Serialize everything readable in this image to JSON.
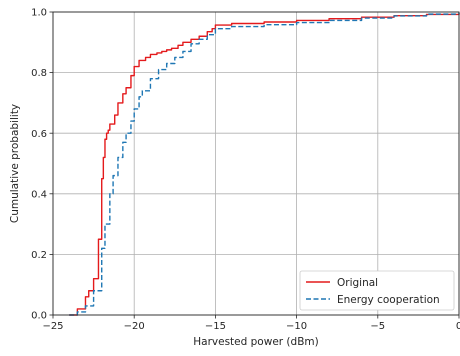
{
  "chart_data": {
    "type": "line",
    "title": "",
    "xlabel": "Harvested power (dBm)",
    "ylabel": "Cumulative probability",
    "xlim": [
      -25,
      0
    ],
    "ylim": [
      0.0,
      1.0
    ],
    "xticks": [
      -25,
      -20,
      -15,
      -10,
      -5,
      0
    ],
    "xtick_labels": [
      "−25",
      "−20",
      "−15",
      "−10",
      "−5",
      "0"
    ],
    "yticks": [
      0.0,
      0.2,
      0.4,
      0.6,
      0.8,
      1.0
    ],
    "ytick_labels": [
      "0.0",
      "0.2",
      "0.4",
      "0.6",
      "0.8",
      "1.0"
    ],
    "grid": true,
    "legend_position": "bottom-right",
    "series": [
      {
        "name": "Original",
        "color": "#e41a1c",
        "style": "solid",
        "x": [
          -24.0,
          -23.5,
          -23.0,
          -22.8,
          -22.5,
          -22.2,
          -22.0,
          -21.9,
          -21.8,
          -21.7,
          -21.6,
          -21.5,
          -21.2,
          -21.0,
          -20.7,
          -20.5,
          -20.2,
          -20.0,
          -19.7,
          -19.3,
          -19.0,
          -18.6,
          -18.3,
          -18.0,
          -17.7,
          -17.3,
          -17.0,
          -16.5,
          -16.0,
          -15.5,
          -15.2,
          -15.0,
          -14.0,
          -12.0,
          -10.0,
          -8.0,
          -6.0,
          -4.0,
          -2.0,
          0.0
        ],
        "values": [
          0.0,
          0.02,
          0.06,
          0.08,
          0.12,
          0.25,
          0.45,
          0.52,
          0.58,
          0.6,
          0.61,
          0.63,
          0.66,
          0.7,
          0.73,
          0.75,
          0.79,
          0.82,
          0.84,
          0.85,
          0.86,
          0.865,
          0.87,
          0.875,
          0.88,
          0.89,
          0.9,
          0.91,
          0.92,
          0.935,
          0.945,
          0.957,
          0.962,
          0.967,
          0.972,
          0.978,
          0.983,
          0.988,
          0.992,
          0.995
        ]
      },
      {
        "name": "Energy cooperation",
        "color": "#1f77b4",
        "style": "dashed",
        "x": [
          -24.0,
          -23.5,
          -23.0,
          -22.5,
          -22.0,
          -21.8,
          -21.5,
          -21.3,
          -21.0,
          -20.7,
          -20.5,
          -20.2,
          -20.0,
          -19.7,
          -19.5,
          -19.0,
          -18.5,
          -18.0,
          -17.5,
          -17.0,
          -16.5,
          -16.0,
          -15.5,
          -15.0,
          -14.0,
          -12.0,
          -10.0,
          -8.0,
          -6.0,
          -4.0,
          -2.0,
          0.0
        ],
        "values": [
          0.0,
          0.01,
          0.03,
          0.08,
          0.22,
          0.3,
          0.4,
          0.46,
          0.52,
          0.57,
          0.6,
          0.64,
          0.68,
          0.72,
          0.74,
          0.78,
          0.81,
          0.83,
          0.85,
          0.87,
          0.895,
          0.91,
          0.925,
          0.945,
          0.952,
          0.958,
          0.965,
          0.972,
          0.98,
          0.987,
          0.993,
          0.998
        ]
      }
    ]
  }
}
